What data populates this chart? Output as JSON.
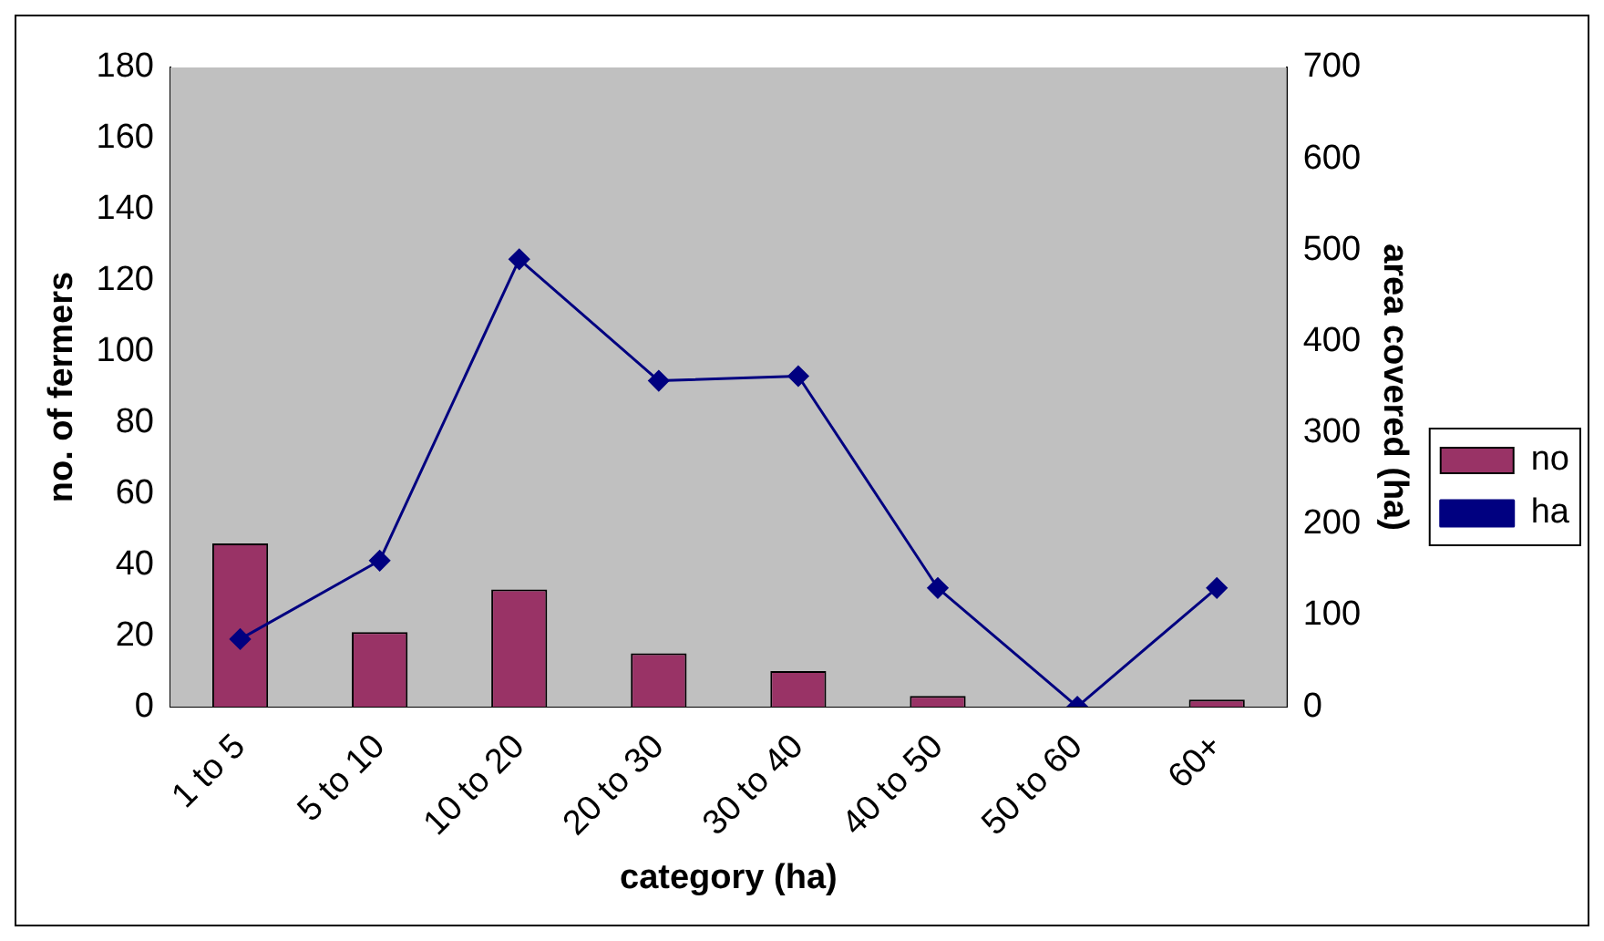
{
  "chart_data": {
    "type": "bar",
    "xlabel": "category (ha)",
    "ylabel": "no. of fermers",
    "y2label": "area covered (ha)",
    "categories": [
      "1 to 5",
      "5 to 10",
      "10 to 20",
      "20 to 30",
      "30 to 40",
      "40 to 50",
      "50 to 60",
      "60+"
    ],
    "series": [
      {
        "name": "no",
        "color": "#993366",
        "values": [
          46,
          21,
          33,
          15,
          10,
          3,
          0,
          2
        ]
      },
      {
        "name": "ha",
        "type": "line",
        "axis": "y2",
        "color": "#000080",
        "marker": "diamond",
        "values": [
          74,
          160,
          490,
          357,
          362,
          130,
          0,
          130
        ]
      }
    ],
    "ylim": [
      0,
      180
    ],
    "yticks": [
      0,
      20,
      40,
      60,
      80,
      100,
      120,
      140,
      160,
      180
    ],
    "y2lim": [
      0,
      700
    ],
    "y2ticks": [
      0,
      100,
      200,
      300,
      400,
      500,
      600,
      700
    ],
    "grid": false,
    "legend": "right"
  }
}
